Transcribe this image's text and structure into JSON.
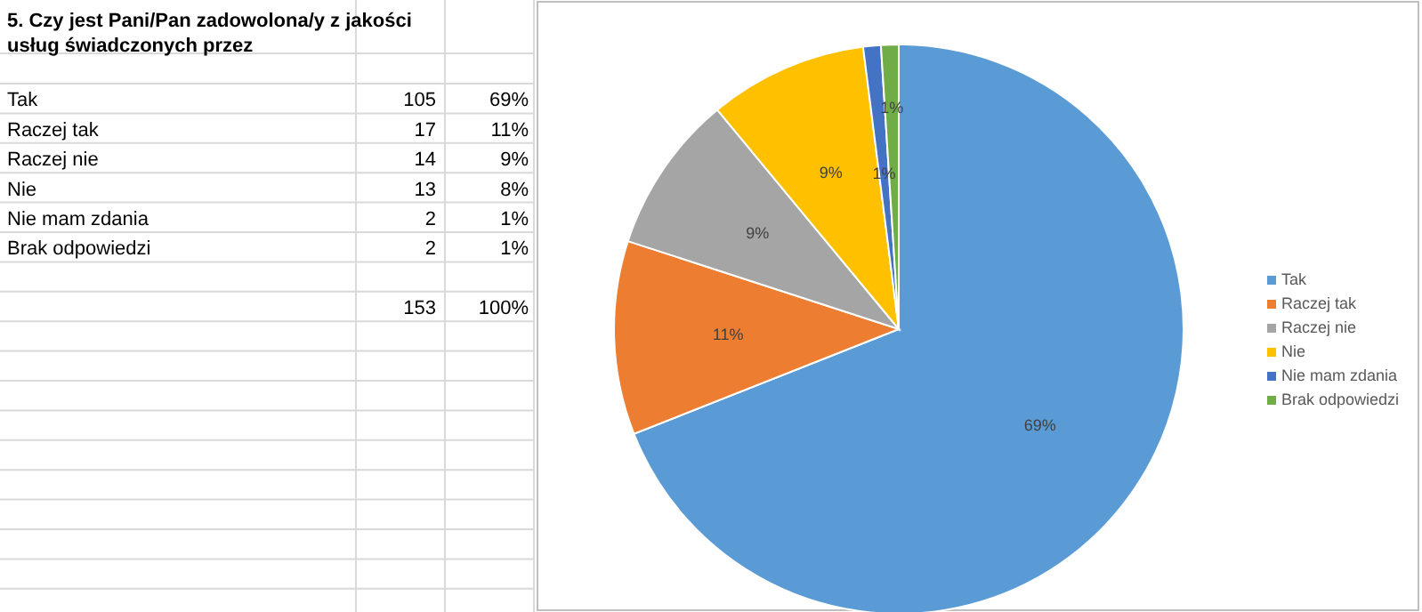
{
  "chart_data": {
    "type": "pie",
    "title": "5. Czy jest Pani/Pan zadowolona/y z jakości usług świadczonych przez",
    "categories": [
      "Tak",
      "Raczej tak",
      "Raczej nie",
      "Nie",
      "Nie mam zdania",
      "Brak odpowiedzi"
    ],
    "values": [
      69,
      11,
      9,
      9,
      1,
      1
    ],
    "colors": [
      "#5b9bd5",
      "#ed7d31",
      "#a5a5a5",
      "#ffc000",
      "#4472c4",
      "#70ad47"
    ],
    "value_labels": [
      "69%",
      "11%",
      "9%",
      "9%",
      "1%",
      "1%"
    ],
    "annotations": [
      "105",
      "17",
      "14",
      "13",
      "2",
      "2",
      "69%",
      "11%",
      "9%",
      "8%",
      "1%",
      "1%",
      "153",
      "100%"
    ],
    "legend": "right"
  }
}
